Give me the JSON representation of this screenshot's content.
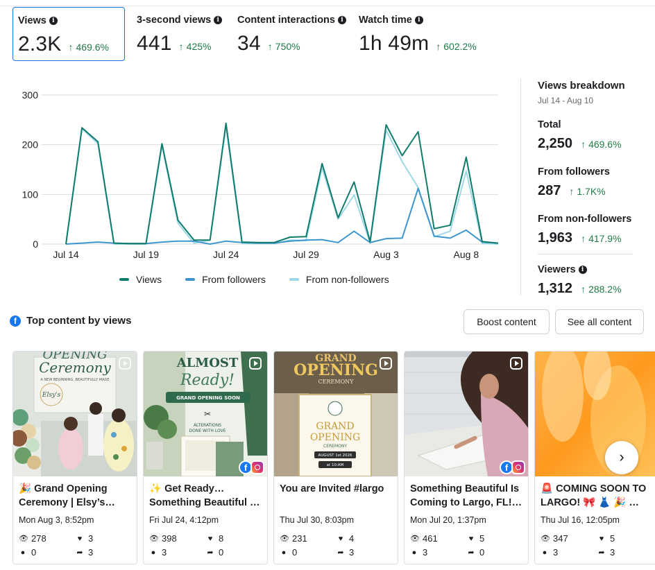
{
  "metrics": [
    {
      "label": "Views",
      "value": "2.3K",
      "change": "469.6%"
    },
    {
      "label": "3-second views",
      "value": "441",
      "change": "425%"
    },
    {
      "label": "Content interactions",
      "value": "34",
      "change": "750%"
    },
    {
      "label": "Watch time",
      "value": "1h 49m",
      "change": "602.2%"
    }
  ],
  "chart_data": {
    "type": "line",
    "x": [
      "Jul 14",
      "Jul 15",
      "Jul 16",
      "Jul 17",
      "Jul 18",
      "Jul 19",
      "Jul 20",
      "Jul 21",
      "Jul 22",
      "Jul 23",
      "Jul 24",
      "Jul 25",
      "Jul 26",
      "Jul 27",
      "Jul 28",
      "Jul 29",
      "Jul 30",
      "Jul 31",
      "Aug 1",
      "Aug 2",
      "Aug 3",
      "Aug 4",
      "Aug 5",
      "Aug 6",
      "Aug 7",
      "Aug 8",
      "Aug 9",
      "Aug 10"
    ],
    "x_ticks": [
      "Jul 14",
      "Jul 19",
      "Jul 24",
      "Jul 29",
      "Aug 3",
      "Aug 8"
    ],
    "y_ticks": [
      0,
      100,
      200,
      300
    ],
    "ylim": [
      0,
      300
    ],
    "grid": true,
    "legend_position": "bottom",
    "series": [
      {
        "name": "Views",
        "color": "#0f7b6c",
        "values": [
          0,
          234,
          206,
          2,
          1,
          1,
          202,
          48,
          8,
          8,
          243,
          4,
          3,
          3,
          14,
          15,
          162,
          53,
          125,
          5,
          240,
          178,
          226,
          31,
          38,
          175,
          5,
          2
        ]
      },
      {
        "name": "From followers",
        "color": "#3d95ce",
        "values": [
          0,
          2,
          4,
          2,
          1,
          1,
          4,
          6,
          6,
          0,
          6,
          3,
          2,
          2,
          6,
          8,
          9,
          3,
          26,
          3,
          11,
          12,
          112,
          16,
          12,
          28,
          4,
          2
        ]
      },
      {
        "name": "From non-followers",
        "color": "#9fd8e6",
        "values": [
          0,
          232,
          202,
          0,
          0,
          0,
          198,
          42,
          2,
          8,
          237,
          1,
          1,
          1,
          8,
          7,
          153,
          50,
          99,
          2,
          229,
          166,
          114,
          15,
          26,
          147,
          1,
          0
        ]
      }
    ]
  },
  "breakdown": {
    "title": "Views breakdown",
    "range": "Jul 14 - Aug 10",
    "rows": [
      {
        "label": "Total",
        "value": "2,250",
        "change": "469.6%"
      },
      {
        "label": "From followers",
        "value": "287",
        "change": "1.7K%"
      },
      {
        "label": "From non-followers",
        "value": "1,963",
        "change": "417.9%"
      },
      {
        "label": "Viewers",
        "value": "1,312",
        "change": "288.2%"
      }
    ]
  },
  "top_content": {
    "title": "Top content by views",
    "boost_label": "Boost content",
    "see_all_label": "See all content",
    "cards": [
      {
        "line1": "🎉 Grand Opening",
        "line2": "Ceremony | Elsy’s…",
        "date": "Mon Aug 3, 8:52pm",
        "views": "278",
        "likes": "3",
        "comments": "0",
        "shares": "3"
      },
      {
        "line1": "✨ Get Ready…",
        "line2": "Something Beautiful …",
        "date": "Fri Jul 24, 4:12pm",
        "views": "398",
        "likes": "8",
        "comments": "3",
        "shares": "0"
      },
      {
        "line1": "You are Invited #largo",
        "line2": "",
        "date": "Thu Jul 30, 8:03pm",
        "views": "231",
        "likes": "4",
        "comments": "0",
        "shares": "3"
      },
      {
        "line1": "Something Beautiful Is",
        "line2": "Coming to Largo, FL!…",
        "date": "Mon Jul 20, 1:37pm",
        "views": "461",
        "likes": "5",
        "comments": "3",
        "shares": "0"
      },
      {
        "line1": "🚨 COMING SOON TO",
        "line2": "LARGO! 🎀 👗 🎉 …",
        "date": "Thu Jul 16, 12:05pm",
        "views": "347",
        "likes": "5",
        "comments": "3",
        "shares": "3"
      }
    ],
    "thumb_texts": {
      "c1_l1": "OPENING",
      "c1_l2": "Ceremony",
      "c1_l3": "A NEW BEGINNING, BEAUTIFULLY MADE",
      "c1_logo": "Elsy's",
      "c2_l1": "ALMOST",
      "c2_l2": "Ready!",
      "c2_l3": "GRAND OPENING SOON",
      "c2_l4": "ALTERATIONS",
      "c2_l5": "DONE WITH LOVE",
      "c3_l1": "GRAND",
      "c3_l2": "OPENING",
      "c3_l3": "CEREMONY",
      "c3_l4": "GRAND",
      "c3_l5": "OPENING",
      "c3_l6": "CEREMONY",
      "c3_l7": "AUGUST 1st 2026",
      "c3_l8": "at 10:AM"
    }
  }
}
